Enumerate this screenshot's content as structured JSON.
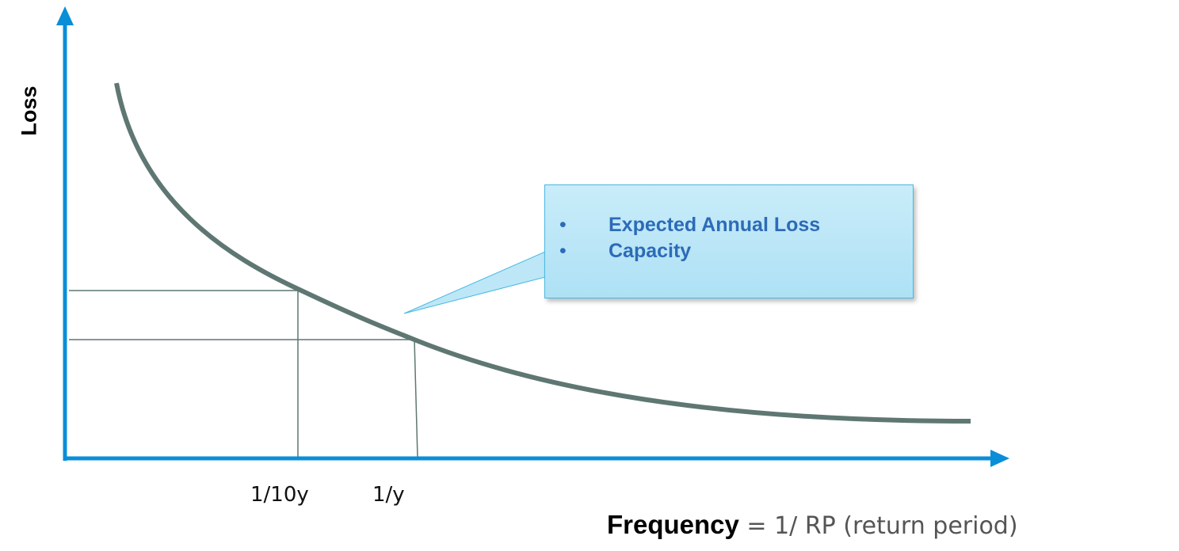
{
  "diagram": {
    "y_axis_label": "Loss",
    "x_ticks": [
      "1/10y",
      "1/y"
    ],
    "x_axis_label_bold": "Frequency",
    "x_axis_label_rest": " = 1/ RP (return period)",
    "callout": {
      "bullet": "•",
      "items": [
        "Expected Annual Loss",
        "Capacity"
      ]
    },
    "colors": {
      "axis": "#0a8ed8",
      "curve": "#5f7772",
      "guide_lines": "#5f7772",
      "callout_fill": "#bde7f7",
      "callout_border": "#49b9e3",
      "callout_text": "#2d6bb8"
    }
  }
}
